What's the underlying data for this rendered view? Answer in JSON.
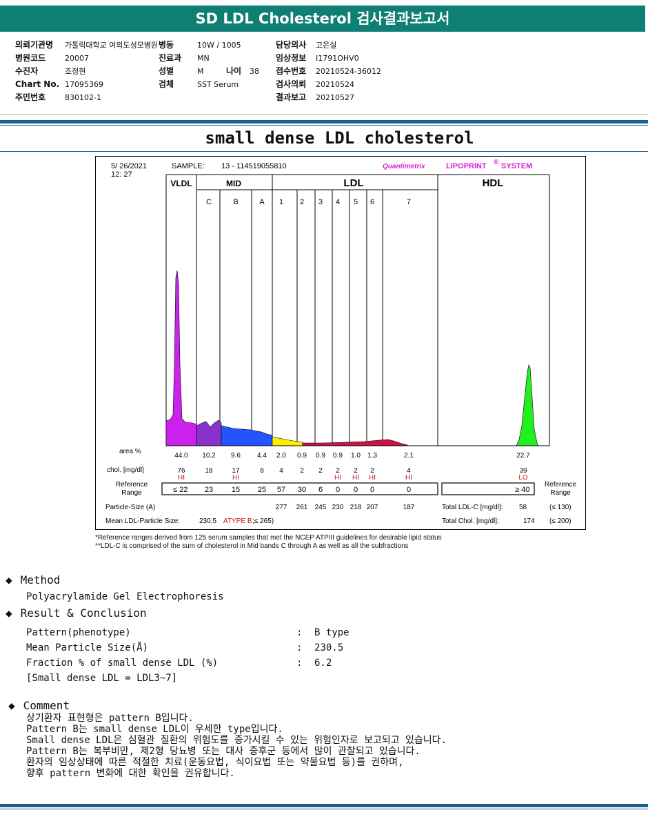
{
  "header": {
    "title": "SD LDL Cholesterol 검사결과보고서"
  },
  "patient": {
    "col1": [
      {
        "label": "의뢰기관명",
        "value": "가톨릭대학교 여의도성모병원"
      },
      {
        "label": "병원코드",
        "value": "20007"
      },
      {
        "label": "수진자",
        "value": "조정현"
      },
      {
        "label": "Chart No.",
        "value": "17095369"
      },
      {
        "label": "주민번호",
        "value": "830102-1"
      }
    ],
    "col2": [
      {
        "label": "병동",
        "value": "10W / 1005"
      },
      {
        "label": "진료과",
        "value": "MN"
      },
      {
        "label": "성별",
        "value": "M"
      },
      {
        "label": "검체",
        "value": "SST Serum"
      }
    ],
    "age": {
      "label": "나이",
      "value": "38"
    },
    "col3": [
      {
        "label": "담당의사",
        "value": "고은실"
      },
      {
        "label": "임상정보",
        "value": "I1791OHV0"
      },
      {
        "label": "접수번호",
        "value": "20210524-36012"
      },
      {
        "label": "검사의뢰",
        "value": "20210524"
      },
      {
        "label": "결과보고",
        "value": "20210527"
      }
    ]
  },
  "report_title": "small dense LDL cholesterol",
  "chart_data": {
    "type": "area",
    "date": "5/ 26/2021",
    "time": "12: 27",
    "sample_label": "SAMPLE:",
    "sample_id": "13 - 114519055810",
    "brand_a": "Quantimetrix",
    "brand_b": "LIPOPRINT",
    "brand_sup": "®",
    "brand_c": "SYSTEM",
    "groups": [
      "VLDL",
      "MID",
      "LDL",
      "HDL"
    ],
    "bands": [
      "C",
      "B",
      "A",
      "1",
      "2",
      "3",
      "4",
      "5",
      "6",
      "7"
    ],
    "area_label": "area %",
    "area": [
      "44.0",
      "10.2",
      "9.6",
      "4.4",
      "2.0",
      "0.9",
      "0.9",
      "0.9",
      "1.0",
      "1.3",
      "2.1",
      "22.7"
    ],
    "chol_label": "chol. [mg/dl]",
    "chol": [
      "76",
      "18",
      "17",
      "8",
      "4",
      "2",
      "2",
      "2",
      "2",
      "2",
      "4",
      "39"
    ],
    "flags": [
      "HI",
      "",
      "HI",
      "",
      "",
      "",
      "",
      "HI",
      "HI",
      "HI",
      "HI",
      "LO"
    ],
    "ref_label": [
      "Reference",
      "Range"
    ],
    "ref_vldl": "≤ 22",
    "ref": [
      "23",
      "15",
      "25",
      "57",
      "30",
      "6",
      "0",
      "0",
      "0",
      "0"
    ],
    "ref_hdl": "≥ 40",
    "psize_label": "Particle-Size (A)",
    "psize": [
      "277",
      "261",
      "245",
      "230",
      "218",
      "207",
      "187"
    ],
    "mean_label": "Mean LDL-Particle Size:",
    "mean_value": "230.5",
    "mean_type": "ATYPE B",
    "mean_ref": ";≤ 265)",
    "total_ldl_label": "Total LDL-C [mg/dl]:",
    "total_ldl": "58",
    "total_ldl_ref": "(≤ 130)",
    "total_chol_label": "Total Chol. [mg/dl]:",
    "total_chol": "174",
    "total_chol_ref": "(≤ 200)",
    "colors": {
      "vldl": "#cc22ee",
      "midC": "#8833cc",
      "midB": "#2255ff",
      "ldl1": "#ffee00",
      "ldl7": "#cc1144",
      "hdl": "#22ee22"
    }
  },
  "footnotes": [
    "*Reference ranges derived from 125 serum samples that met the NCEP ATPIII guidelines for desirable lipid status",
    "**LDL-C is comprised of the sum of cholesterol in Mid bands C through A as well as all the subfractions"
  ],
  "method": {
    "heading": "Method",
    "text": "Polyacrylamide Gel Electrophoresis"
  },
  "result": {
    "heading": "Result & Conclusion",
    "rows": [
      {
        "k": "Pattern(phenotype)",
        "v": "B type"
      },
      {
        "k": "Mean Particle Size(Å)",
        "v": "230.5"
      },
      {
        "k": "Fraction % of small dense LDL (%)",
        "v": "6.2"
      }
    ],
    "note": "[Small dense LDL = LDL3~7]",
    "colon": ":"
  },
  "comment": {
    "heading": "Comment",
    "lines": [
      "상기환자 표현형은 pattern B입니다.",
      "Pattern B는 small dense LDL이 우세한 type입니다.",
      "Small dense LDL은 심혈관 질환의 위험도를 증가시킬 수 있는 위험인자로 보고되고 있습니다.",
      "Pattern B는 복부비만, 제2형 당뇨병 또는 대사 증후군 등에서 많이 관찰되고 있습니다.",
      "환자의 임상상태에 따른 적절한 치료(운동요법, 식이요법 또는 약물요법 등)를 권하며,",
      "향후 pattern 변화에 대한 확인을 권유합니다."
    ]
  }
}
